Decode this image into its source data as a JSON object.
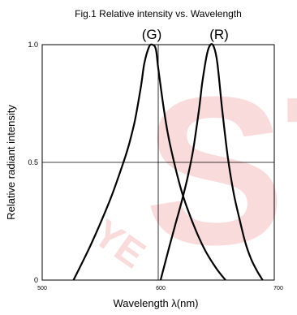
{
  "chart_data": {
    "type": "line",
    "title": "Fig.1 Relative intensity vs. Wavelength",
    "xlabel": "Wavelength λ(nm)",
    "ylabel": "Relative radiant intensity",
    "xlim": [
      500,
      700
    ],
    "ylim": [
      0,
      1.0
    ],
    "xticks": [
      "500",
      "600",
      "700"
    ],
    "yticks": [
      "0",
      "0.5",
      "1.0"
    ],
    "grid": true,
    "series": [
      {
        "name": "(G)",
        "color": "#000000",
        "x": [
          527,
          540,
          550,
          560,
          570,
          575,
          580,
          585,
          588,
          592,
          595,
          598,
          600,
          605,
          610,
          620,
          630,
          640,
          650,
          658
        ],
        "y": [
          0.0,
          0.13,
          0.24,
          0.36,
          0.5,
          0.58,
          0.68,
          0.82,
          0.92,
          0.99,
          1.0,
          0.98,
          0.9,
          0.72,
          0.58,
          0.38,
          0.24,
          0.13,
          0.05,
          0.0
        ]
      },
      {
        "name": "(R)",
        "color": "#000000",
        "x": [
          602,
          610,
          615,
          620,
          625,
          630,
          635,
          638,
          642,
          645,
          648,
          651,
          655,
          660,
          665,
          670,
          675,
          680,
          685,
          690
        ],
        "y": [
          0.0,
          0.15,
          0.24,
          0.33,
          0.43,
          0.55,
          0.72,
          0.84,
          0.96,
          1.0,
          0.99,
          0.92,
          0.73,
          0.52,
          0.37,
          0.26,
          0.16,
          0.09,
          0.04,
          0.0
        ]
      }
    ],
    "watermark_text": "STK YE",
    "watermark_color": "#f8d0d0"
  }
}
